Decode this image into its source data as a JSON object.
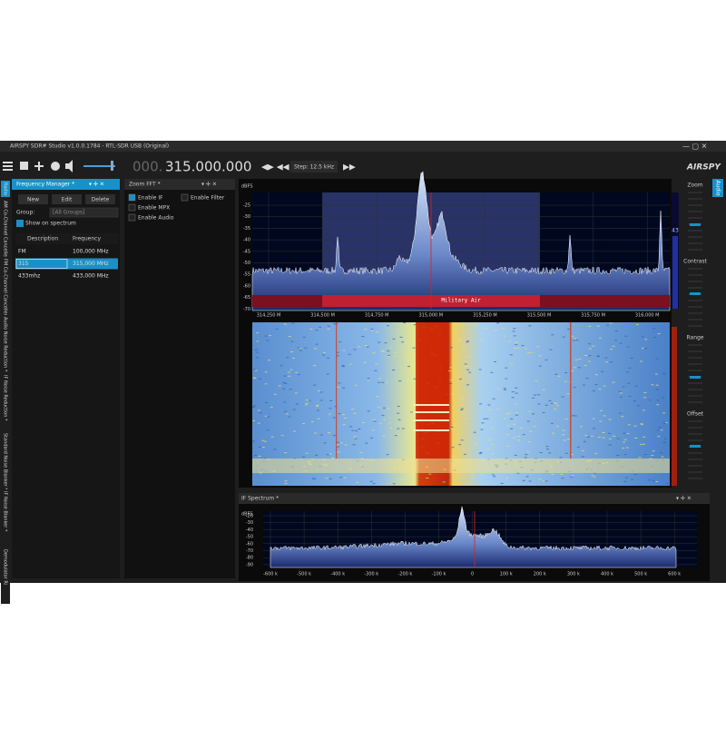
{
  "window": {
    "title": "AIRSPY SDR# Studio v1.0.0.1784 - RTL-SDR USB (Original)"
  },
  "toolbar": {
    "frequency_prefix": "000.",
    "frequency": "315.000.000",
    "step": "Step: 12.5 kHz",
    "logo": "AIRSPY"
  },
  "left_tabs": [
    "Radio",
    "AM Co-Channel Canceller *",
    "FM Co-Channel Canceller *",
    "Audio Noise Reduction *",
    "IF Noise Reduction *",
    "Standard Noise Blanker *",
    "IF Noise Blanker *",
    "Demodulator Ri"
  ],
  "frequency_manager": {
    "title": "Frequency Manager *",
    "buttons": [
      "New",
      "Edit",
      "Delete"
    ],
    "group_label": "Group:",
    "group_value": "[All Groups]",
    "show_on_spectrum": "Show on spectrum",
    "columns": [
      "Description",
      "Frequency"
    ],
    "rows": [
      [
        "FM",
        "100,000 MHz"
      ],
      [
        "315",
        "315,000 MHz"
      ],
      [
        "433mhz",
        "433,000 MHz"
      ]
    ]
  },
  "zoom_fft": {
    "title": "Zoom FFT *",
    "options": [
      "Enable IF",
      "Enable Filter",
      "Enable MPX",
      "Enable Audio"
    ]
  },
  "spectrum": {
    "y_unit": "dBFS",
    "y_ticks": [
      -25,
      -30,
      -35,
      -40,
      -45,
      -50,
      -55,
      -60,
      -65,
      -70
    ],
    "x_ticks": [
      "314,250 M",
      "314,500 M",
      "314,750 M",
      "315,000 M",
      "315,250 M",
      "315,500 M",
      "315,750 M",
      "316,000 M"
    ],
    "band_label": "Military Air"
  },
  "side_controls": {
    "labels": [
      "Zoom",
      "Contrast",
      "Range",
      "Offset"
    ],
    "value": "43"
  },
  "right_tab": "Audio",
  "if_spectrum": {
    "title": "IF Spectrum *",
    "y_unit": "dBFS",
    "y_ticks": [
      -20,
      -30,
      -40,
      -50,
      -60,
      -70,
      -80,
      -90
    ],
    "x_ticks": [
      "-600 k",
      "-500 k",
      "-400 k",
      "-300 k",
      "-200 k",
      "-100 k",
      "0",
      "100 k",
      "200 k",
      "300 k",
      "400 k",
      "500 k",
      "600 k"
    ]
  }
}
